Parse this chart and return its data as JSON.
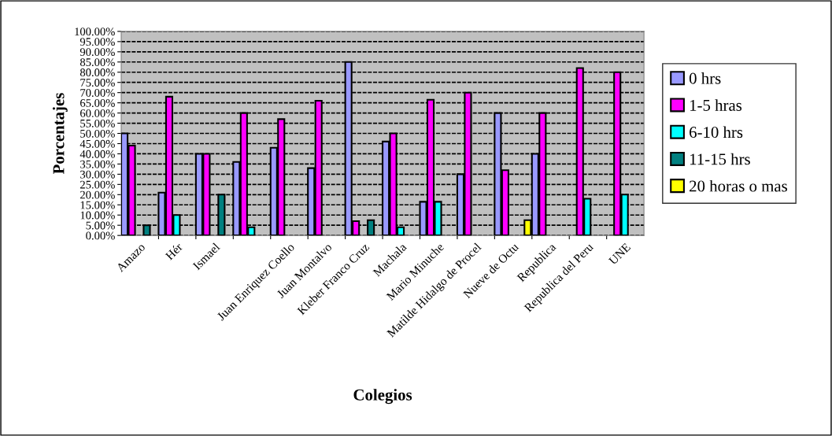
{
  "chart_data": {
    "type": "bar",
    "xlabel": "Colegios",
    "ylabel": "Porcentajes",
    "categories": [
      "Amazo",
      "Hér",
      "Ismael",
      null,
      "Juan Enriquez Coello",
      "Juan Montalvo",
      "Kleber Franco Cruz",
      "Machala",
      "Mario Minuche",
      "Matilde Hidalgo de Procel",
      "Nueve de Octu",
      "Republica",
      "Republica del Peru",
      "UNE"
    ],
    "series": [
      {
        "name": "0 hrs",
        "color": "#9999ff",
        "values": [
          50,
          21,
          40,
          36,
          43,
          33,
          85,
          46,
          16.5,
          30,
          60,
          40,
          null,
          null
        ]
      },
      {
        "name": "1-5 hras",
        "color": "#ff00ff",
        "values": [
          44,
          68,
          40,
          60,
          57,
          66,
          7,
          50,
          66.5,
          70,
          32,
          60,
          82,
          80
        ]
      },
      {
        "name": "6-10 hrs",
        "color": "#00ffff",
        "values": [
          null,
          10,
          null,
          4,
          null,
          null,
          null,
          4,
          16.5,
          null,
          null,
          null,
          18,
          20
        ]
      },
      {
        "name": "11-15 hrs",
        "color": "#008080",
        "values": [
          5,
          null,
          20,
          null,
          null,
          null,
          7.5,
          null,
          null,
          null,
          null,
          null,
          null,
          null
        ]
      },
      {
        "name": "20 horas o mas",
        "color": "#ffff00",
        "values": [
          null,
          null,
          null,
          null,
          null,
          null,
          null,
          null,
          null,
          null,
          7.5,
          null,
          null,
          null
        ]
      }
    ],
    "ylim": [
      0,
      100
    ],
    "yticks": [
      {
        "value": 0,
        "label": "0.00%"
      },
      {
        "value": 5,
        "label": "5.00%"
      },
      {
        "value": 10,
        "label": "10.00%"
      },
      {
        "value": 15,
        "label": "15.00%"
      },
      {
        "value": 20,
        "label": "20.00%"
      },
      {
        "value": 25,
        "label": "25.00%"
      },
      {
        "value": 30,
        "label": "30.00%"
      },
      {
        "value": 35,
        "label": "35.00%"
      },
      {
        "value": 40,
        "label": "40.00%"
      },
      {
        "value": 45,
        "label": "45.00%"
      },
      {
        "value": 50,
        "label": "50.00%"
      },
      {
        "value": 55,
        "label": "55.00%"
      },
      {
        "value": 60,
        "label": "60.00%"
      },
      {
        "value": 65,
        "label": "65.00%"
      },
      {
        "value": 70,
        "label": "70.00%"
      },
      {
        "value": 75,
        "label": "75.00%"
      },
      {
        "value": 80,
        "label": "80.00%"
      },
      {
        "value": 85,
        "label": "85.00%"
      },
      {
        "value": 90,
        "label": "90.00%"
      },
      {
        "value": 95,
        "label": "95.00%"
      },
      {
        "value": 100,
        "label": "100.00%"
      }
    ],
    "grid": "y",
    "legend": "right"
  }
}
